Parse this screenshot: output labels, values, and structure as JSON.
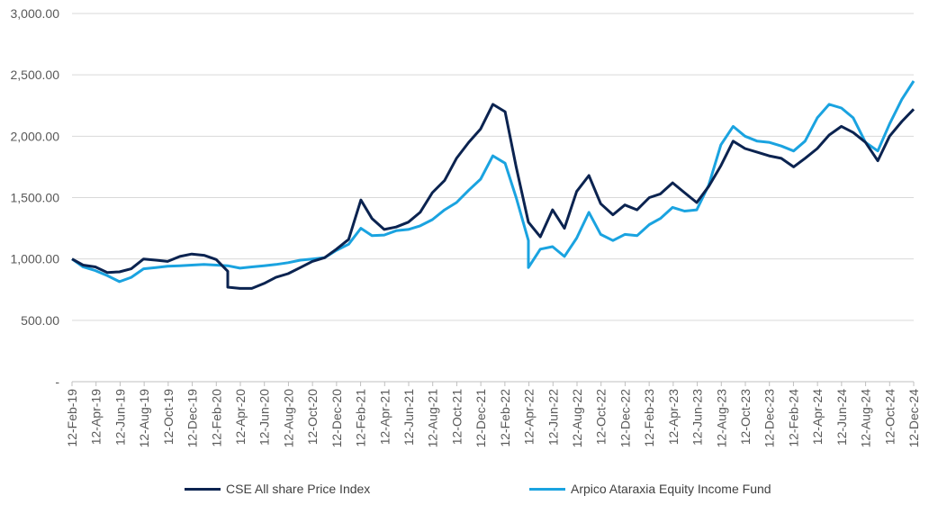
{
  "chart_data": {
    "type": "line",
    "title": "",
    "xlabel": "",
    "ylabel": "",
    "ylim": [
      0,
      3000
    ],
    "yticks": [
      "-",
      "500.00",
      "1,000.00",
      "1,500.00",
      "2,000.00",
      "2,500.00",
      "3,000.00"
    ],
    "xticks": [
      "12-Feb-19",
      "12-Apr-19",
      "12-Jun-19",
      "12-Aug-19",
      "12-Oct-19",
      "12-Dec-19",
      "12-Feb-20",
      "12-Apr-20",
      "12-Jun-20",
      "12-Aug-20",
      "12-Oct-20",
      "12-Dec-20",
      "12-Feb-21",
      "12-Apr-21",
      "12-Jun-21",
      "12-Aug-21",
      "12-Oct-21",
      "12-Dec-21",
      "12-Feb-22",
      "12-Apr-22",
      "12-Jun-22",
      "12-Aug-22",
      "12-Oct-22",
      "12-Dec-22",
      "12-Feb-23",
      "12-Apr-23",
      "12-Jun-23",
      "12-Aug-23",
      "12-Oct-23",
      "12-Dec-23",
      "12-Feb-24",
      "12-Apr-24",
      "12-Jun-24",
      "12-Aug-24",
      "12-Oct-24",
      "12-Dec-24"
    ],
    "grid": "horizontal",
    "legend_position": "bottom",
    "series": [
      {
        "name": "CSE All share Price Index",
        "color": "#0b2350",
        "points": [
          [
            "12-Feb-19",
            1000
          ],
          [
            "12-Mar-19",
            950
          ],
          [
            "12-Apr-19",
            935
          ],
          [
            "12-May-19",
            890
          ],
          [
            "12-Jun-19",
            895
          ],
          [
            "12-Jul-19",
            920
          ],
          [
            "12-Aug-19",
            1000
          ],
          [
            "12-Sep-19",
            990
          ],
          [
            "12-Oct-19",
            980
          ],
          [
            "12-Nov-19",
            1020
          ],
          [
            "12-Dec-19",
            1040
          ],
          [
            "12-Jan-20",
            1030
          ],
          [
            "12-Feb-20",
            995
          ],
          [
            "12-Mar-20",
            900
          ],
          [
            "12-Mar-20",
            770
          ],
          [
            "12-Apr-20",
            760
          ],
          [
            "12-May-20",
            760
          ],
          [
            "12-Jun-20",
            800
          ],
          [
            "12-Jul-20",
            850
          ],
          [
            "12-Aug-20",
            880
          ],
          [
            "12-Sep-20",
            930
          ],
          [
            "12-Oct-20",
            980
          ],
          [
            "12-Nov-20",
            1010
          ],
          [
            "12-Dec-20",
            1080
          ],
          [
            "12-Jan-21",
            1160
          ],
          [
            "12-Feb-21",
            1480
          ],
          [
            "12-Mar-21",
            1330
          ],
          [
            "12-Apr-21",
            1240
          ],
          [
            "12-May-21",
            1260
          ],
          [
            "12-Jun-21",
            1300
          ],
          [
            "12-Jul-21",
            1380
          ],
          [
            "12-Aug-21",
            1540
          ],
          [
            "12-Sep-21",
            1640
          ],
          [
            "12-Oct-21",
            1820
          ],
          [
            "12-Nov-21",
            1950
          ],
          [
            "12-Dec-21",
            2060
          ],
          [
            "12-Jan-22",
            2260
          ],
          [
            "12-Feb-22",
            2200
          ],
          [
            "12-Mar-22",
            1750
          ],
          [
            "12-Apr-22",
            1300
          ],
          [
            "12-May-22",
            1180
          ],
          [
            "12-Jun-22",
            1400
          ],
          [
            "12-Jul-22",
            1250
          ],
          [
            "12-Aug-22",
            1550
          ],
          [
            "12-Sep-22",
            1680
          ],
          [
            "12-Oct-22",
            1450
          ],
          [
            "12-Nov-22",
            1360
          ],
          [
            "12-Dec-22",
            1440
          ],
          [
            "12-Jan-23",
            1400
          ],
          [
            "12-Feb-23",
            1500
          ],
          [
            "12-Mar-23",
            1530
          ],
          [
            "12-Apr-23",
            1620
          ],
          [
            "12-May-23",
            1540
          ],
          [
            "12-Jun-23",
            1460
          ],
          [
            "12-Jul-23",
            1590
          ],
          [
            "12-Aug-23",
            1760
          ],
          [
            "12-Sep-23",
            1960
          ],
          [
            "12-Oct-23",
            1900
          ],
          [
            "12-Nov-23",
            1870
          ],
          [
            "12-Dec-23",
            1840
          ],
          [
            "12-Jan-24",
            1820
          ],
          [
            "12-Feb-24",
            1750
          ],
          [
            "12-Mar-24",
            1820
          ],
          [
            "12-Apr-24",
            1900
          ],
          [
            "12-May-24",
            2010
          ],
          [
            "12-Jun-24",
            2080
          ],
          [
            "12-Jul-24",
            2030
          ],
          [
            "12-Aug-24",
            1950
          ],
          [
            "12-Sep-24",
            1800
          ],
          [
            "12-Oct-24",
            2000
          ],
          [
            "12-Nov-24",
            2120
          ],
          [
            "12-Dec-24",
            2220
          ]
        ]
      },
      {
        "name": "Arpico Ataraxia Equity Income Fund",
        "color": "#1aa3e0",
        "points": [
          [
            "12-Feb-19",
            1000
          ],
          [
            "12-Mar-19",
            935
          ],
          [
            "12-Apr-19",
            905
          ],
          [
            "12-May-19",
            865
          ],
          [
            "12-Jun-19",
            815
          ],
          [
            "12-Jul-19",
            850
          ],
          [
            "12-Aug-19",
            920
          ],
          [
            "12-Sep-19",
            930
          ],
          [
            "12-Oct-19",
            940
          ],
          [
            "12-Nov-19",
            945
          ],
          [
            "12-Dec-19",
            950
          ],
          [
            "12-Jan-20",
            955
          ],
          [
            "12-Feb-20",
            950
          ],
          [
            "12-Mar-20",
            945
          ],
          [
            "12-Apr-20",
            925
          ],
          [
            "12-May-20",
            935
          ],
          [
            "12-Jun-20",
            945
          ],
          [
            "12-Jul-20",
            955
          ],
          [
            "12-Aug-20",
            970
          ],
          [
            "12-Sep-20",
            990
          ],
          [
            "12-Oct-20",
            1000
          ],
          [
            "12-Nov-20",
            1010
          ],
          [
            "12-Dec-20",
            1070
          ],
          [
            "12-Jan-21",
            1120
          ],
          [
            "12-Feb-21",
            1250
          ],
          [
            "12-Mar-21",
            1190
          ],
          [
            "12-Apr-21",
            1195
          ],
          [
            "12-May-21",
            1230
          ],
          [
            "12-Jun-21",
            1240
          ],
          [
            "12-Jul-21",
            1270
          ],
          [
            "12-Aug-21",
            1320
          ],
          [
            "12-Sep-21",
            1400
          ],
          [
            "12-Oct-21",
            1460
          ],
          [
            "12-Nov-21",
            1560
          ],
          [
            "12-Dec-21",
            1650
          ],
          [
            "12-Jan-22",
            1840
          ],
          [
            "12-Feb-22",
            1780
          ],
          [
            "12-Mar-22",
            1500
          ],
          [
            "12-Apr-22",
            1150
          ],
          [
            "12-Apr-22",
            930
          ],
          [
            "12-May-22",
            1080
          ],
          [
            "12-Jun-22",
            1100
          ],
          [
            "12-Jul-22",
            1020
          ],
          [
            "12-Aug-22",
            1170
          ],
          [
            "12-Sep-22",
            1380
          ],
          [
            "12-Oct-22",
            1200
          ],
          [
            "12-Nov-22",
            1150
          ],
          [
            "12-Dec-22",
            1200
          ],
          [
            "12-Jan-23",
            1190
          ],
          [
            "12-Feb-23",
            1280
          ],
          [
            "12-Mar-23",
            1330
          ],
          [
            "12-Apr-23",
            1420
          ],
          [
            "12-May-23",
            1390
          ],
          [
            "12-Jun-23",
            1400
          ],
          [
            "12-Jul-23",
            1600
          ],
          [
            "12-Aug-23",
            1930
          ],
          [
            "12-Sep-23",
            2080
          ],
          [
            "12-Oct-23",
            2000
          ],
          [
            "12-Nov-23",
            1960
          ],
          [
            "12-Dec-23",
            1950
          ],
          [
            "12-Jan-24",
            1920
          ],
          [
            "12-Feb-24",
            1880
          ],
          [
            "12-Mar-24",
            1960
          ],
          [
            "12-Apr-24",
            2150
          ],
          [
            "12-May-24",
            2260
          ],
          [
            "12-Jun-24",
            2230
          ],
          [
            "12-Jul-24",
            2150
          ],
          [
            "12-Aug-24",
            1950
          ],
          [
            "12-Sep-24",
            1880
          ],
          [
            "12-Oct-24",
            2100
          ],
          [
            "12-Nov-24",
            2300
          ],
          [
            "12-Dec-24",
            2450
          ]
        ]
      }
    ]
  }
}
